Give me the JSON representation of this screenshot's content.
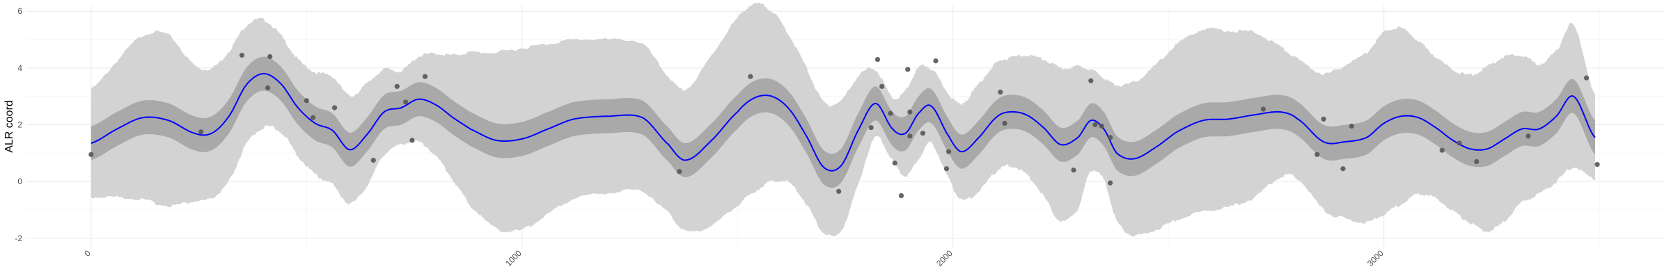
{
  "chart_data": {
    "type": "line",
    "title": "",
    "xlabel": "",
    "ylabel": "ALR coord",
    "xlim": [
      -150,
      3650
    ],
    "ylim": [
      -2.3,
      6.2
    ],
    "grid": true,
    "legend": "none",
    "x_ticks": [
      0,
      1000,
      2000,
      3000
    ],
    "y_ticks": [
      -2,
      0,
      2,
      4,
      6
    ],
    "tick_labels_x": [
      "0",
      "1000",
      "2000",
      "3000"
    ],
    "tick_labels_y": [
      "-2",
      "0",
      "2",
      "4",
      "6"
    ],
    "colors": {
      "line": "#0000ff",
      "inner_band": "#a9a9a9",
      "outer_band": "#d3d3d3",
      "points": "#555555"
    },
    "mean_curve": {
      "x": [
        0,
        60,
        120,
        180,
        240,
        280,
        320,
        360,
        400,
        440,
        480,
        520,
        560,
        600,
        640,
        680,
        720,
        760,
        800,
        840,
        880,
        940,
        1000,
        1060,
        1120,
        1200,
        1280,
        1340,
        1380,
        1440,
        1500,
        1540,
        1580,
        1620,
        1660,
        1700,
        1740,
        1780,
        1820,
        1860,
        1890,
        1920,
        1950,
        1990,
        2020,
        2060,
        2100,
        2130,
        2170,
        2210,
        2250,
        2290,
        2320,
        2350,
        2380,
        2420,
        2470,
        2520,
        2580,
        2640,
        2700,
        2760,
        2800,
        2860,
        2910,
        2960,
        3000,
        3040,
        3080,
        3120,
        3160,
        3200,
        3240,
        3280,
        3320,
        3360,
        3400,
        3440,
        3490
      ],
      "y": [
        1.35,
        1.85,
        2.25,
        2.15,
        1.7,
        1.7,
        2.3,
        3.4,
        3.8,
        3.45,
        2.6,
        2.05,
        1.8,
        1.12,
        1.65,
        2.45,
        2.6,
        2.9,
        2.7,
        2.25,
        1.85,
        1.45,
        1.5,
        1.85,
        2.2,
        2.3,
        2.25,
        1.3,
        0.75,
        1.45,
        2.45,
        2.95,
        3.0,
        2.55,
        1.6,
        0.5,
        0.55,
        1.8,
        2.75,
        1.85,
        1.7,
        2.4,
        2.65,
        1.6,
        1.05,
        1.55,
        2.25,
        2.45,
        2.35,
        1.9,
        1.3,
        1.55,
        2.15,
        1.85,
        1.0,
        0.8,
        1.2,
        1.75,
        2.15,
        2.2,
        2.35,
        2.45,
        2.2,
        1.4,
        1.4,
        1.55,
        2.05,
        2.3,
        2.25,
        1.9,
        1.45,
        1.15,
        1.15,
        1.5,
        1.85,
        1.85,
        2.3,
        3.0,
        1.55
      ]
    },
    "band_inner": {
      "halfwidth": [
        0.6,
        0.6,
        0.6,
        0.6,
        0.6,
        0.6,
        0.6,
        0.6,
        0.6,
        0.6,
        0.6,
        0.6,
        0.6,
        0.6,
        0.6,
        0.6,
        0.6,
        0.6,
        0.6,
        0.6,
        0.6,
        0.6,
        0.6,
        0.6,
        0.6,
        0.6,
        0.6,
        0.6,
        0.6,
        0.6,
        0.6,
        0.6,
        0.6,
        0.6,
        0.6,
        0.6,
        0.6,
        0.6,
        0.6,
        0.6,
        0.6,
        0.6,
        0.6,
        0.6,
        0.6,
        0.6,
        0.6,
        0.6,
        0.6,
        0.6,
        0.6,
        0.6,
        0.6,
        0.6,
        0.6,
        0.6,
        0.6,
        0.6,
        0.6,
        0.6,
        0.6,
        0.6,
        0.6,
        0.6,
        0.6,
        0.6,
        0.6,
        0.6,
        0.6,
        0.6,
        0.6,
        0.6,
        0.6,
        0.6,
        0.6,
        0.6,
        0.6,
        0.6,
        0.6
      ]
    },
    "band_outer": {
      "halfwidth": [
        1.9,
        2.4,
        2.9,
        3.0,
        2.4,
        2.3,
        2.3,
        2.1,
        1.9,
        1.7,
        1.7,
        1.8,
        1.9,
        1.9,
        1.8,
        1.5,
        1.3,
        1.5,
        1.8,
        2.2,
        2.7,
        3.1,
        3.2,
        3.0,
        2.8,
        2.7,
        2.6,
        2.4,
        2.5,
        3.0,
        3.3,
        3.3,
        3.0,
        2.6,
        2.4,
        2.3,
        2.3,
        1.9,
        1.2,
        1.1,
        1.5,
        1.6,
        1.3,
        1.5,
        1.7,
        1.9,
        1.9,
        1.9,
        2.1,
        2.4,
        2.7,
        2.5,
        1.8,
        1.8,
        2.4,
        2.7,
        2.9,
        3.1,
        3.2,
        3.1,
        2.9,
        2.3,
        2.1,
        2.4,
        2.7,
        3.0,
        3.2,
        3.1,
        2.7,
        2.5,
        2.5,
        2.6,
        2.9,
        2.9,
        2.6,
        2.3,
        2.3,
        2.5,
        1.5
      ]
    },
    "points": [
      {
        "x": 0,
        "y": 0.95
      },
      {
        "x": 255,
        "y": 1.75
      },
      {
        "x": 350,
        "y": 4.45
      },
      {
        "x": 410,
        "y": 3.3
      },
      {
        "x": 415,
        "y": 4.4
      },
      {
        "x": 500,
        "y": 2.85
      },
      {
        "x": 515,
        "y": 2.25
      },
      {
        "x": 565,
        "y": 2.6
      },
      {
        "x": 655,
        "y": 0.75
      },
      {
        "x": 710,
        "y": 3.35
      },
      {
        "x": 730,
        "y": 2.8
      },
      {
        "x": 745,
        "y": 1.45
      },
      {
        "x": 775,
        "y": 3.7
      },
      {
        "x": 1365,
        "y": 0.35
      },
      {
        "x": 1530,
        "y": 3.7
      },
      {
        "x": 1735,
        "y": -0.35
      },
      {
        "x": 1810,
        "y": 1.9
      },
      {
        "x": 1825,
        "y": 4.3
      },
      {
        "x": 1835,
        "y": 3.35
      },
      {
        "x": 1855,
        "y": 2.4
      },
      {
        "x": 1865,
        "y": 0.65
      },
      {
        "x": 1880,
        "y": -0.5
      },
      {
        "x": 1895,
        "y": 3.95
      },
      {
        "x": 1900,
        "y": 2.45
      },
      {
        "x": 1900,
        "y": 1.6
      },
      {
        "x": 1930,
        "y": 1.7
      },
      {
        "x": 1960,
        "y": 4.25
      },
      {
        "x": 1985,
        "y": 0.45
      },
      {
        "x": 1990,
        "y": 1.05
      },
      {
        "x": 2110,
        "y": 3.15
      },
      {
        "x": 2120,
        "y": 2.05
      },
      {
        "x": 2280,
        "y": 0.4
      },
      {
        "x": 2320,
        "y": 3.55
      },
      {
        "x": 2330,
        "y": 2.0
      },
      {
        "x": 2345,
        "y": 1.95
      },
      {
        "x": 2365,
        "y": -0.05
      },
      {
        "x": 2365,
        "y": 1.55
      },
      {
        "x": 2720,
        "y": 2.55
      },
      {
        "x": 2845,
        "y": 0.95
      },
      {
        "x": 2860,
        "y": 2.2
      },
      {
        "x": 2905,
        "y": 0.45
      },
      {
        "x": 2925,
        "y": 1.95
      },
      {
        "x": 3135,
        "y": 1.1
      },
      {
        "x": 3175,
        "y": 1.35
      },
      {
        "x": 3215,
        "y": 0.7
      },
      {
        "x": 3335,
        "y": 1.6
      },
      {
        "x": 3470,
        "y": 3.65
      },
      {
        "x": 3495,
        "y": 0.6
      }
    ]
  }
}
